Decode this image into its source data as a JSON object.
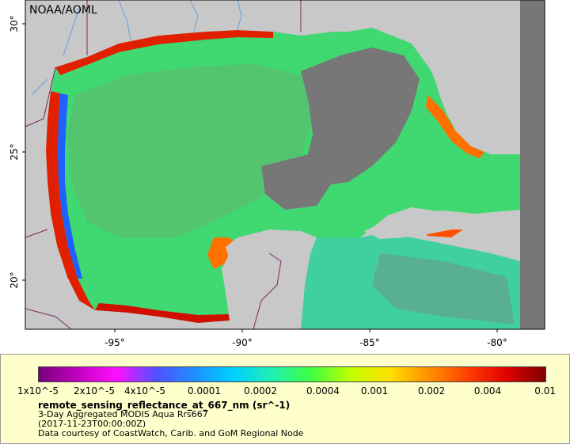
{
  "map": {
    "credit": "NOAA/AOML",
    "lat_labels": [
      "30°",
      "25°",
      "20°"
    ],
    "lon_labels": [
      "-95°",
      "-90°",
      "-85°",
      "-80°"
    ],
    "colors": {
      "land": "#c8c8c8",
      "nodata": "#777777",
      "rivers": "#6a9ed6",
      "borders": "#7a2a6a"
    }
  },
  "legend": {
    "tick_labels": [
      "1x10^-5",
      "2x10^-5",
      "4x10^-5",
      "0.0001",
      "0.0002",
      "0.0004",
      "0.001",
      "0.002",
      "0.004",
      "0.01"
    ],
    "colormap": [
      "#7a007a",
      "#c000c0",
      "#ff10ff",
      "#5050ff",
      "#1e90ff",
      "#00d0ff",
      "#20f0b0",
      "#40ff40",
      "#c0ff00",
      "#ffe000",
      "#ff9000",
      "#ff4000",
      "#e00000",
      "#800000"
    ],
    "variable": "remote_sensing_reflectance_at_667_nm (sr^-1)",
    "line1": "3-Day Aggregated MODIS Aqua Rrs667",
    "line2": "(2017-11-23T00:00:00Z)",
    "line3": "Data courtesy of CoastWatch, Carib. and GoM Regional Node"
  }
}
